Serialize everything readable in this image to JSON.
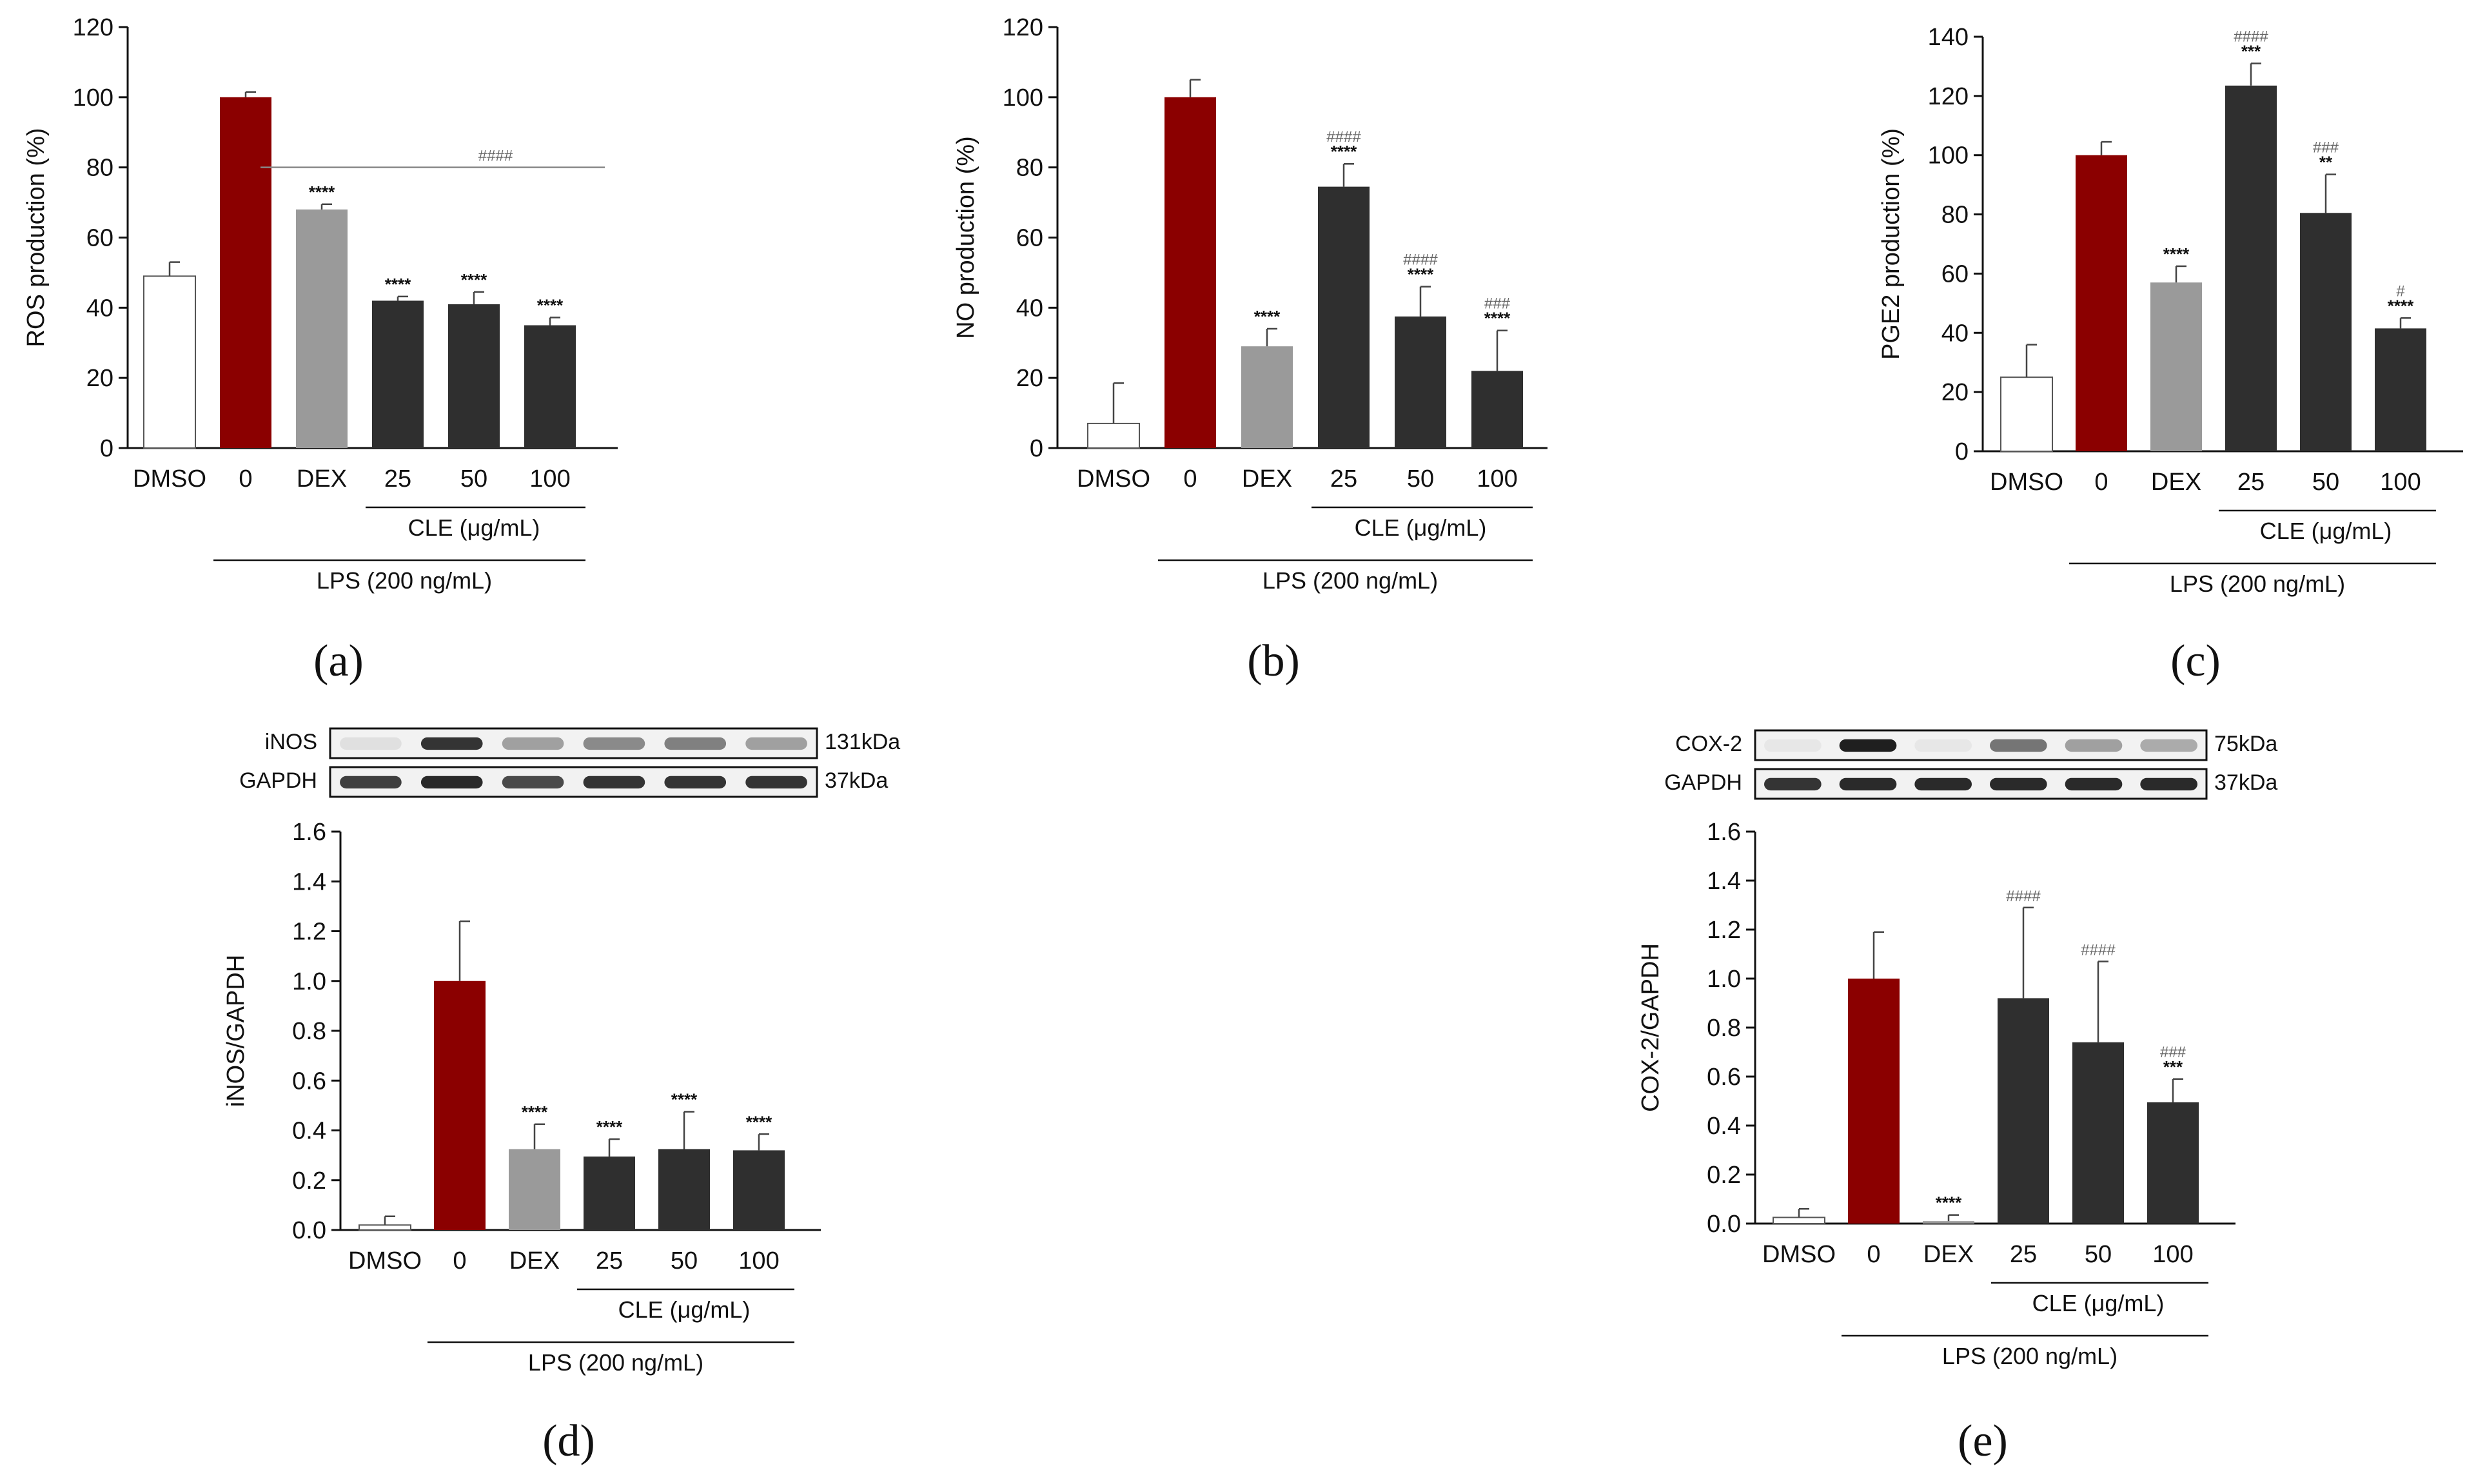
{
  "figure": {
    "title": ""
  },
  "colors": {
    "dmso": "#ffffff",
    "lps": "#8b0000",
    "dex": "#9a9a9a",
    "cle": "#2f2f2f",
    "ink": "#111111"
  },
  "chart_data": [
    {
      "id": "a",
      "type": "bar",
      "panel_label": "(a)",
      "title": "",
      "xlabel": "",
      "ylabel": "ROS production (%)",
      "ylim": [
        0,
        120
      ],
      "yticks": [
        "0",
        "20",
        "40",
        "60",
        "80",
        "100",
        "120"
      ],
      "categories": [
        "DMSO",
        "0",
        "DEX",
        "25",
        "50",
        "100"
      ],
      "values": [
        49,
        100,
        68,
        42,
        41,
        35
      ],
      "errors": [
        4,
        1.5,
        1.5,
        1.2,
        3.5,
        2.2
      ],
      "stars": [
        "",
        "",
        "****",
        "****",
        "****",
        "****"
      ],
      "hashes": [
        "",
        "",
        "",
        "",
        "",
        ""
      ],
      "hash_bracket": "####",
      "group_label": "CLE (μg/mL)",
      "treatment_label": "LPS (200 ng/mL)"
    },
    {
      "id": "b",
      "type": "bar",
      "panel_label": "(b)",
      "title": "",
      "xlabel": "",
      "ylabel": "NO production (%)",
      "ylim": [
        0,
        120
      ],
      "yticks": [
        "0",
        "20",
        "40",
        "60",
        "80",
        "100",
        "120"
      ],
      "categories": [
        "DMSO",
        "0",
        "DEX",
        "25",
        "50",
        "100"
      ],
      "values": [
        7,
        100,
        29,
        74.5,
        37.5,
        22
      ],
      "errors": [
        11.5,
        5,
        5,
        6.5,
        8.5,
        11.5
      ],
      "stars": [
        "",
        "",
        "****",
        "****",
        "****",
        "****"
      ],
      "hashes": [
        "",
        "",
        "",
        "####",
        "####",
        "###"
      ],
      "hash_bracket": "",
      "group_label": "CLE (μg/mL)",
      "treatment_label": "LPS (200 ng/mL)"
    },
    {
      "id": "c",
      "type": "bar",
      "panel_label": "(c)",
      "title": "",
      "xlabel": "",
      "ylabel": "PGE2 production  (%)",
      "ylim": [
        0,
        140
      ],
      "yticks": [
        "0",
        "20",
        "40",
        "60",
        "80",
        "100",
        "120",
        "140"
      ],
      "categories": [
        "DMSO",
        "0",
        "DEX",
        "25",
        "50",
        "100"
      ],
      "values": [
        25,
        100,
        57,
        123.5,
        80.5,
        41.5
      ],
      "errors": [
        11,
        4.5,
        5.5,
        7.5,
        13,
        3.5
      ],
      "stars": [
        "",
        "",
        "****",
        "***",
        "**",
        "****"
      ],
      "hashes": [
        "",
        "",
        "",
        "####",
        "###",
        "#"
      ],
      "hash_bracket": "",
      "group_label": "CLE (μg/mL)",
      "treatment_label": "LPS (200 ng/mL)"
    },
    {
      "id": "d",
      "type": "bar",
      "panel_label": "(d)",
      "title": "",
      "xlabel": "",
      "ylabel": "iNOS/GAPDH",
      "ylim": [
        0,
        1.6
      ],
      "yticks": [
        "0.0",
        "0.2",
        "0.4",
        "0.6",
        "0.8",
        "1.0",
        "1.2",
        "1.4",
        "1.6"
      ],
      "categories": [
        "DMSO",
        "0",
        "DEX",
        "25",
        "50",
        "100"
      ],
      "values": [
        0.02,
        1.0,
        0.325,
        0.295,
        0.325,
        0.32
      ],
      "errors": [
        0.035,
        0.24,
        0.1,
        0.07,
        0.15,
        0.065
      ],
      "stars": [
        "",
        "",
        "****",
        "****",
        "****",
        "****"
      ],
      "hashes": [
        "",
        "",
        "",
        "",
        "",
        ""
      ],
      "hash_bracket": "",
      "group_label": "CLE (μg/mL)",
      "treatment_label": "LPS (200 ng/mL)",
      "blot": {
        "rows": [
          {
            "name": "iNOS",
            "size": "131kDa",
            "intensity": [
              0.05,
              0.85,
              0.35,
              0.45,
              0.5,
              0.35
            ]
          },
          {
            "name": "GAPDH",
            "size": "37kDa",
            "intensity": [
              0.8,
              0.9,
              0.75,
              0.85,
              0.85,
              0.85
            ]
          }
        ]
      }
    },
    {
      "id": "e",
      "type": "bar",
      "panel_label": "(e)",
      "title": "",
      "xlabel": "",
      "ylabel": "COX-2/GAPDH",
      "ylim": [
        0,
        1.6
      ],
      "yticks": [
        "0.0",
        "0.2",
        "0.4",
        "0.6",
        "0.8",
        "1.0",
        "1.2",
        "1.4",
        "1.6"
      ],
      "categories": [
        "DMSO",
        "0",
        "DEX",
        "25",
        "50",
        "100"
      ],
      "values": [
        0.025,
        1.0,
        0.01,
        0.92,
        0.74,
        0.495
      ],
      "errors": [
        0.035,
        0.19,
        0.025,
        0.37,
        0.33,
        0.095
      ],
      "stars": [
        "",
        "",
        "****",
        "",
        "",
        "***"
      ],
      "hashes": [
        "",
        "",
        "",
        "####",
        "####",
        "###"
      ],
      "hash_bracket": "",
      "group_label": "CLE (μg/mL)",
      "treatment_label": "LPS (200 ng/mL)",
      "blot": {
        "rows": [
          {
            "name": "COX-2",
            "size": "75kDa",
            "intensity": [
              0.02,
              0.95,
              0.02,
              0.55,
              0.35,
              0.3
            ]
          },
          {
            "name": "GAPDH",
            "size": "37kDa",
            "intensity": [
              0.85,
              0.9,
              0.9,
              0.9,
              0.9,
              0.9
            ]
          }
        ]
      }
    }
  ]
}
